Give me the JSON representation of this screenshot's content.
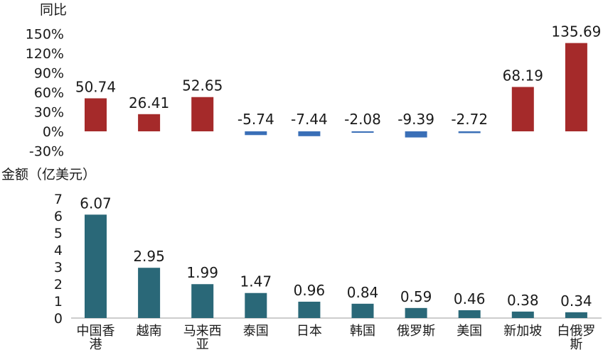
{
  "chart_data": [
    {
      "type": "bar",
      "ylabel": "同比",
      "y_tick_labels": [
        "150%",
        "120%",
        "90%",
        "60%",
        "30%",
        "0%",
        "-30%"
      ],
      "ylim": [
        -30,
        150
      ],
      "categories": [
        "中国香港",
        "越南",
        "马来西亚",
        "泰国",
        "日本",
        "韩国",
        "俄罗斯",
        "美国",
        "新加坡",
        "白俄罗斯"
      ],
      "values": [
        50.74,
        26.41,
        52.65,
        -5.74,
        -7.44,
        -2.08,
        -9.39,
        -2.72,
        68.19,
        135.69
      ],
      "value_labels": [
        "50.74",
        "26.41",
        "52.65",
        "-5.74",
        "-7.44",
        "-2.08",
        "-9.39",
        "-2.72",
        "68.19",
        "135.69"
      ],
      "positive_color": "#a52a2a",
      "negative_color": "#3a6fb7"
    },
    {
      "type": "bar",
      "ylabel": "金额（亿美元）",
      "y_tick_labels": [
        "7",
        "6",
        "5",
        "4",
        "3",
        "2",
        "1",
        "0"
      ],
      "ylim": [
        0,
        7
      ],
      "categories": [
        "中国香港",
        "越南",
        "马来西亚",
        "泰国",
        "日本",
        "韩国",
        "俄罗斯",
        "美国",
        "新加坡",
        "白俄罗斯"
      ],
      "values": [
        6.07,
        2.95,
        1.99,
        1.47,
        0.96,
        0.84,
        0.59,
        0.46,
        0.38,
        0.34
      ],
      "value_labels": [
        "6.07",
        "2.95",
        "1.99",
        "1.47",
        "0.96",
        "0.84",
        "0.59",
        "0.46",
        "0.38",
        "0.34"
      ],
      "bar_color": "#2a6878"
    }
  ]
}
